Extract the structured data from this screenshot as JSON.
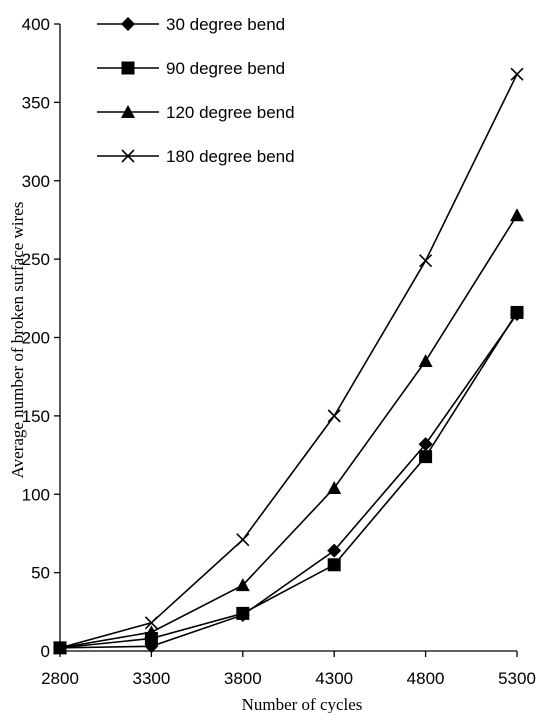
{
  "chart_data": {
    "type": "line",
    "title": "",
    "xlabel": "Number of cycles",
    "ylabel": "Average number of broken surface wires",
    "x": [
      2800,
      3300,
      3800,
      4300,
      4800,
      5300
    ],
    "xlim": [
      2800,
      5300
    ],
    "ylim": [
      0,
      400
    ],
    "yticks": [
      0,
      50,
      100,
      150,
      200,
      250,
      300,
      350,
      400
    ],
    "grid": false,
    "legend_position": "top-left",
    "series": [
      {
        "name": "30 degree bend",
        "marker": "diamond",
        "color": "#000000",
        "values": [
          2,
          3,
          23,
          64,
          132,
          215
        ]
      },
      {
        "name": "90 degree bend",
        "marker": "square",
        "color": "#000000",
        "values": [
          2,
          8,
          24,
          55,
          124,
          216
        ]
      },
      {
        "name": "120 degree bend",
        "marker": "triangle",
        "color": "#000000",
        "values": [
          2,
          12,
          42,
          104,
          185,
          278
        ]
      },
      {
        "name": "180 degree bend",
        "marker": "x",
        "color": "#000000",
        "values": [
          2,
          18,
          71,
          150,
          249,
          368
        ]
      }
    ]
  }
}
